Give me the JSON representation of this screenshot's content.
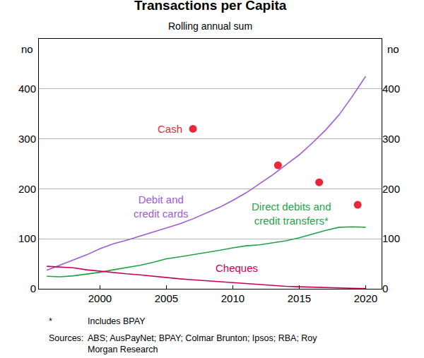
{
  "chart_data": {
    "type": "line",
    "title": "Transactions per Capita",
    "subtitle": "Rolling annual sum",
    "y_unit": "no",
    "xlim": [
      1995.4,
      2021.2
    ],
    "xticks": [
      2000,
      2005,
      2010,
      2015,
      2020
    ],
    "ylim": [
      0,
      500
    ],
    "yticks": [
      0,
      100,
      200,
      300,
      400
    ],
    "y2lim": [
      0,
      500
    ],
    "y2ticks": [
      0,
      100,
      200,
      300,
      400
    ],
    "grid": true,
    "series": [
      {
        "name": "Debit and\ncredit cards",
        "type": "line",
        "color": "#a05ad8",
        "line_style": "solid",
        "x": [
          1996,
          1997,
          1998,
          1999,
          2000,
          2001,
          2002,
          2003,
          2004,
          2005,
          2006,
          2007,
          2008,
          2009,
          2010,
          2011,
          2012,
          2013,
          2014,
          2015,
          2016,
          2017,
          2018,
          2019,
          2020
        ],
        "values": [
          37,
          47,
          57,
          68,
          80,
          90,
          97,
          105,
          113,
          122,
          130,
          140,
          152,
          163,
          177,
          192,
          210,
          228,
          248,
          268,
          292,
          318,
          348,
          385,
          425
        ]
      },
      {
        "name": "Direct debits and\ncredit transfers*",
        "type": "line",
        "color": "#1fa347",
        "line_style": "solid",
        "x": [
          1996,
          1997,
          1998,
          1999,
          2000,
          2001,
          2002,
          2003,
          2004,
          2005,
          2006,
          2007,
          2008,
          2009,
          2010,
          2011,
          2012,
          2013,
          2014,
          2015,
          2016,
          2017,
          2018,
          2019,
          2020
        ],
        "values": [
          25,
          24,
          26,
          29,
          33,
          38,
          42,
          47,
          53,
          60,
          64,
          68,
          73,
          77,
          82,
          86,
          88,
          92,
          96,
          102,
          110,
          117,
          123,
          124,
          123
        ]
      },
      {
        "name": "Cheques",
        "type": "line",
        "color": "#c8005a",
        "line_style": "solid",
        "x": [
          1996,
          1997,
          1998,
          1999,
          2000,
          2001,
          2002,
          2003,
          2004,
          2005,
          2006,
          2007,
          2008,
          2009,
          2010,
          2011,
          2012,
          2013,
          2014,
          2015,
          2016,
          2017,
          2018,
          2019,
          2020
        ],
        "values": [
          45,
          44,
          42,
          38,
          35,
          32,
          30,
          28,
          25,
          22,
          20,
          18,
          16,
          14,
          12,
          10,
          8,
          7,
          5,
          4,
          3,
          2,
          1.5,
          1,
          0.5
        ]
      },
      {
        "name": "Cash",
        "type": "scatter",
        "color": "#e8273a",
        "marker": "circle",
        "x": [
          2007,
          2013.4,
          2016.5,
          2019.4
        ],
        "values": [
          320,
          247,
          213,
          168
        ]
      }
    ],
    "footnote": {
      "mark": "*",
      "text": "Includes BPAY"
    },
    "sources": {
      "label": "Sources:",
      "text": "ABS; AusPayNet; BPAY; Colmar Brunton; Ipsos; RBA; Roy\nMorgan Research"
    }
  }
}
